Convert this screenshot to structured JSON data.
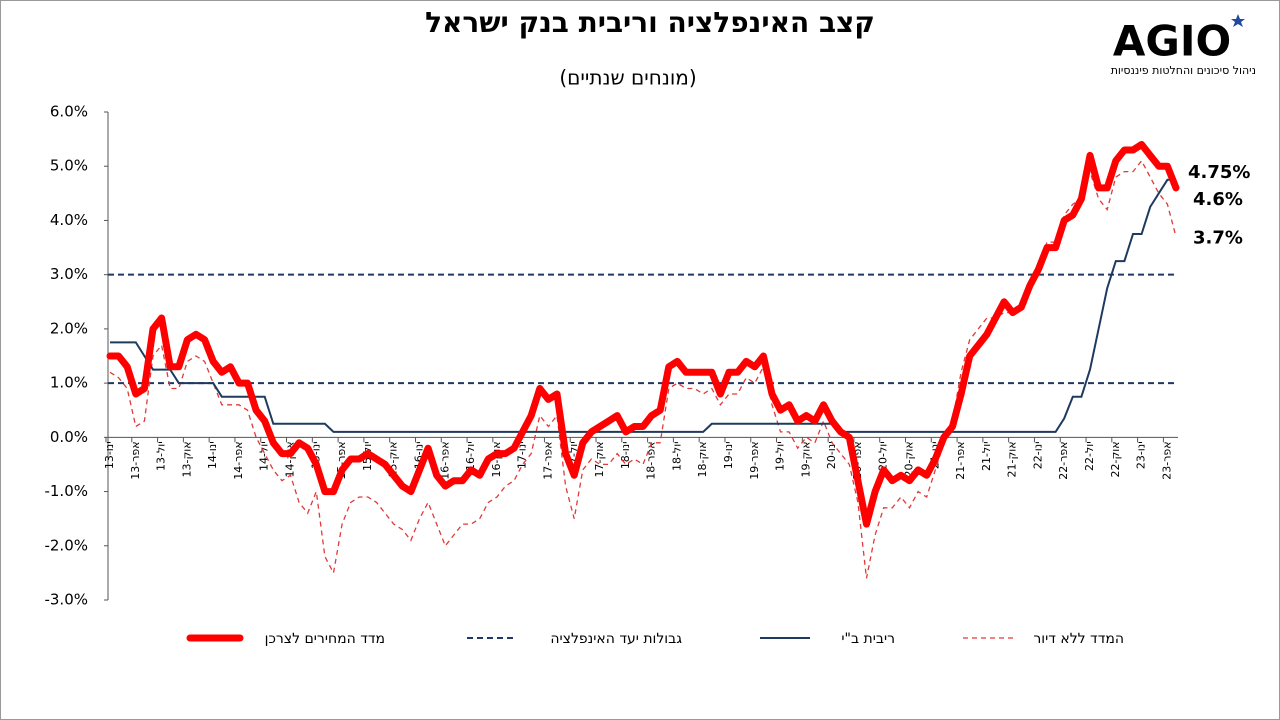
{
  "logo": {
    "name": "AGIO",
    "tagline": "ניהול סיכונים והחלטות פיננסיות"
  },
  "chart_data": {
    "type": "line",
    "title": "קצב האינפלציה וריבית בנק ישראל",
    "subtitle": "(מונחים שנתיים)",
    "categories": [
      "ינו-13",
      null,
      null,
      "אפר-13",
      null,
      null,
      "יול-13",
      null,
      null,
      "אוק-13",
      null,
      null,
      "ינו-14",
      null,
      null,
      "אפר-14",
      null,
      null,
      "יול-14",
      null,
      null,
      "אוק-14",
      null,
      null,
      "ינו-15",
      null,
      null,
      "אפר-15",
      null,
      null,
      "יול-15",
      null,
      null,
      "אוק-15",
      null,
      null,
      "ינו-16",
      null,
      null,
      "אפר-16",
      null,
      null,
      "יול-16",
      null,
      null,
      "אוק-16",
      null,
      null,
      "ינו-17",
      null,
      null,
      "אפר-17",
      null,
      null,
      "יול-17",
      null,
      null,
      "אוק-17",
      null,
      null,
      "ינו-18",
      null,
      null,
      "אפר-18",
      null,
      null,
      "יול-18",
      null,
      null,
      "אוק-18",
      null,
      null,
      "ינו-19",
      null,
      null,
      "אפר-19",
      null,
      null,
      "יול-19",
      null,
      null,
      "אוק-19",
      null,
      null,
      "ינו-20",
      null,
      null,
      "אפר-20",
      null,
      null,
      "יול-20",
      null,
      null,
      "אוק-20",
      null,
      null,
      "ינו-21",
      null,
      null,
      "אפר-21",
      null,
      null,
      "יול-21",
      null,
      null,
      "אוק-21",
      null,
      null,
      "ינו-22",
      null,
      null,
      "אפר-22",
      null,
      null,
      "יול-22",
      null,
      null,
      "אוק-22",
      null,
      null,
      "ינו-23",
      null,
      null,
      "אפר-23",
      null
    ],
    "series": [
      {
        "name": "מדד המחירים לצרכן",
        "color": "#ff0000",
        "style": "thick",
        "values": [
          1.5,
          1.5,
          1.3,
          0.8,
          0.9,
          2.0,
          2.2,
          1.3,
          1.3,
          1.8,
          1.9,
          1.8,
          1.4,
          1.2,
          1.3,
          1.0,
          1.0,
          0.5,
          0.3,
          -0.1,
          -0.3,
          -0.3,
          -0.1,
          -0.2,
          -0.5,
          -1.0,
          -1.0,
          -0.6,
          -0.4,
          -0.4,
          -0.3,
          -0.4,
          -0.5,
          -0.7,
          -0.9,
          -1.0,
          -0.6,
          -0.2,
          -0.7,
          -0.9,
          -0.8,
          -0.8,
          -0.6,
          -0.7,
          -0.4,
          -0.3,
          -0.3,
          -0.2,
          0.1,
          0.4,
          0.9,
          0.7,
          0.8,
          -0.3,
          -0.7,
          -0.1,
          0.1,
          0.2,
          0.3,
          0.4,
          0.1,
          0.2,
          0.2,
          0.4,
          0.5,
          1.3,
          1.4,
          1.2,
          1.2,
          1.2,
          1.2,
          0.8,
          1.2,
          1.2,
          1.4,
          1.3,
          1.5,
          0.8,
          0.5,
          0.6,
          0.3,
          0.4,
          0.3,
          0.6,
          0.3,
          0.1,
          0.0,
          -0.8,
          -1.6,
          -1.0,
          -0.6,
          -0.8,
          -0.7,
          -0.8,
          -0.6,
          -0.7,
          -0.4,
          0.0,
          0.2,
          0.8,
          1.5,
          1.7,
          1.9,
          2.2,
          2.5,
          2.3,
          2.4,
          2.8,
          3.1,
          3.5,
          3.5,
          4.0,
          4.1,
          4.4,
          5.2,
          4.6,
          4.6,
          5.1,
          5.3,
          5.3,
          5.4,
          5.2,
          5.0,
          5.0,
          4.6
        ],
        "value_labels": [
          null,
          null,
          null,
          null,
          null,
          null,
          null,
          null,
          null,
          null,
          null,
          null,
          null,
          null,
          null,
          null,
          null,
          null,
          null,
          null,
          null,
          null,
          null,
          null,
          null,
          null,
          null,
          null,
          null,
          null,
          null,
          null,
          null,
          null,
          null,
          null,
          null,
          null,
          null,
          null,
          null,
          null,
          null,
          null,
          null,
          null,
          null,
          null,
          null,
          null,
          null,
          null,
          null,
          null,
          null,
          null,
          null,
          null,
          null,
          null,
          null,
          null,
          null,
          null,
          null,
          null,
          null,
          null,
          null,
          null,
          null,
          null,
          null,
          null,
          null,
          null,
          null,
          null,
          null,
          null,
          null,
          null,
          null,
          null,
          null,
          null,
          null,
          null,
          null,
          null,
          null,
          null,
          null,
          null,
          null,
          null,
          null,
          null,
          null,
          null,
          null,
          null,
          null,
          null,
          null,
          null,
          null,
          null,
          null,
          null,
          null,
          null,
          null,
          null,
          null,
          null,
          null,
          null,
          null,
          null,
          null,
          null,
          null,
          null,
          "4.6%"
        ]
      },
      {
        "name": "ריבית ב\"י",
        "color": "#1f3a5f",
        "style": "solid",
        "values": [
          1.75,
          1.75,
          1.75,
          1.75,
          1.5,
          1.25,
          1.25,
          1.25,
          1.0,
          1.0,
          1.0,
          1.0,
          1.0,
          0.75,
          0.75,
          0.75,
          0.75,
          0.75,
          0.75,
          0.25,
          0.25,
          0.25,
          0.25,
          0.25,
          0.25,
          0.25,
          0.1,
          0.1,
          0.1,
          0.1,
          0.1,
          0.1,
          0.1,
          0.1,
          0.1,
          0.1,
          0.1,
          0.1,
          0.1,
          0.1,
          0.1,
          0.1,
          0.1,
          0.1,
          0.1,
          0.1,
          0.1,
          0.1,
          0.1,
          0.1,
          0.1,
          0.1,
          0.1,
          0.1,
          0.1,
          0.1,
          0.1,
          0.1,
          0.1,
          0.1,
          0.1,
          0.1,
          0.1,
          0.1,
          0.1,
          0.1,
          0.1,
          0.1,
          0.1,
          0.1,
          0.25,
          0.25,
          0.25,
          0.25,
          0.25,
          0.25,
          0.25,
          0.25,
          0.25,
          0.25,
          0.25,
          0.25,
          0.25,
          0.25,
          0.25,
          0.1,
          0.1,
          0.1,
          0.1,
          0.1,
          0.1,
          0.1,
          0.1,
          0.1,
          0.1,
          0.1,
          0.1,
          0.1,
          0.1,
          0.1,
          0.1,
          0.1,
          0.1,
          0.1,
          0.1,
          0.1,
          0.1,
          0.1,
          0.1,
          0.1,
          0.1,
          0.35,
          0.75,
          0.75,
          1.25,
          2.0,
          2.75,
          3.25,
          3.25,
          3.75,
          3.75,
          4.25,
          4.5,
          4.75,
          4.75
        ],
        "value_labels": [
          null,
          null,
          null,
          null,
          null,
          null,
          null,
          null,
          null,
          null,
          null,
          null,
          null,
          null,
          null,
          null,
          null,
          null,
          null,
          null,
          null,
          null,
          null,
          null,
          null,
          null,
          null,
          null,
          null,
          null,
          null,
          null,
          null,
          null,
          null,
          null,
          null,
          null,
          null,
          null,
          null,
          null,
          null,
          null,
          null,
          null,
          null,
          null,
          null,
          null,
          null,
          null,
          null,
          null,
          null,
          null,
          null,
          null,
          null,
          null,
          null,
          null,
          null,
          null,
          null,
          null,
          null,
          null,
          null,
          null,
          null,
          null,
          null,
          null,
          null,
          null,
          null,
          null,
          null,
          null,
          null,
          null,
          null,
          null,
          null,
          null,
          null,
          null,
          null,
          null,
          null,
          null,
          null,
          null,
          null,
          null,
          null,
          null,
          null,
          null,
          null,
          null,
          null,
          null,
          null,
          null,
          null,
          null,
          null,
          null,
          null,
          null,
          null,
          null,
          null,
          null,
          null,
          null,
          null,
          null,
          null,
          null,
          null,
          null,
          "4.75%"
        ]
      },
      {
        "name": "המדד ללא דיור",
        "color": "#e03a3a",
        "style": "dashed",
        "values": [
          1.2,
          1.1,
          0.9,
          0.2,
          0.3,
          1.5,
          1.7,
          0.9,
          0.9,
          1.4,
          1.5,
          1.4,
          1.0,
          0.6,
          0.6,
          0.6,
          0.5,
          0.0,
          -0.3,
          -0.6,
          -0.8,
          -0.7,
          -1.2,
          -1.4,
          -1.0,
          -2.2,
          -2.5,
          -1.6,
          -1.2,
          -1.1,
          -1.1,
          -1.2,
          -1.4,
          -1.6,
          -1.7,
          -1.9,
          -1.5,
          -1.2,
          -1.6,
          -2.0,
          -1.8,
          -1.6,
          -1.6,
          -1.5,
          -1.2,
          -1.1,
          -0.9,
          -0.8,
          -0.5,
          -0.3,
          0.4,
          0.2,
          0.4,
          -0.9,
          -1.5,
          -0.6,
          -0.4,
          -0.5,
          -0.5,
          -0.3,
          -0.5,
          -0.4,
          -0.5,
          -0.1,
          -0.1,
          0.9,
          1.0,
          0.9,
          0.9,
          0.8,
          0.9,
          0.6,
          0.8,
          0.8,
          1.1,
          1.0,
          1.3,
          0.6,
          0.1,
          0.1,
          -0.2,
          0.0,
          -0.1,
          0.3,
          -0.1,
          -0.3,
          -0.5,
          -1.2,
          -2.6,
          -1.8,
          -1.3,
          -1.3,
          -1.1,
          -1.3,
          -1.0,
          -1.1,
          -0.6,
          -0.1,
          0.3,
          1.2,
          1.8,
          2.0,
          2.2,
          2.2,
          2.3,
          2.3,
          2.4,
          2.9,
          3.1,
          3.6,
          3.6,
          4.1,
          4.3,
          4.4,
          4.9,
          4.4,
          4.2,
          4.8,
          4.9,
          4.9,
          5.1,
          4.8,
          4.5,
          4.3,
          3.7
        ],
        "value_labels": [
          null,
          null,
          null,
          null,
          null,
          null,
          null,
          null,
          null,
          null,
          null,
          null,
          null,
          null,
          null,
          null,
          null,
          null,
          null,
          null,
          null,
          null,
          null,
          null,
          null,
          null,
          null,
          null,
          null,
          null,
          null,
          null,
          null,
          null,
          null,
          null,
          null,
          null,
          null,
          null,
          null,
          null,
          null,
          null,
          null,
          null,
          null,
          null,
          null,
          null,
          null,
          null,
          null,
          null,
          null,
          null,
          null,
          null,
          null,
          null,
          null,
          null,
          null,
          null,
          null,
          null,
          null,
          null,
          null,
          null,
          null,
          null,
          null,
          null,
          null,
          null,
          null,
          null,
          null,
          null,
          null,
          null,
          null,
          null,
          null,
          null,
          null,
          null,
          null,
          null,
          null,
          null,
          null,
          null,
          null,
          null,
          null,
          null,
          null,
          null,
          null,
          null,
          null,
          null,
          null,
          null,
          null,
          null,
          null,
          null,
          null,
          null,
          null,
          null,
          null,
          null,
          null,
          null,
          null,
          null,
          null,
          null,
          null,
          null,
          "3.7%"
        ]
      }
    ],
    "target_band": {
      "name": "גבולות יעד האינפלציה",
      "color": "#1f3864",
      "values": [
        1,
        3
      ]
    },
    "ylim": [
      -3,
      6
    ],
    "yticks": [
      {
        "value": -3,
        "label": "-3.0%"
      },
      {
        "value": -2,
        "label": "-2.0%"
      },
      {
        "value": -1,
        "label": "-1.0%"
      },
      {
        "value": 0,
        "label": "0.0%"
      },
      {
        "value": 1,
        "label": "1.0%"
      },
      {
        "value": 2,
        "label": "2.0%"
      },
      {
        "value": 3,
        "label": "3.0%"
      },
      {
        "value": 4,
        "label": "4.0%"
      },
      {
        "value": 5,
        "label": "5.0%"
      },
      {
        "value": 6,
        "label": "6.0%"
      }
    ],
    "grid": false
  }
}
